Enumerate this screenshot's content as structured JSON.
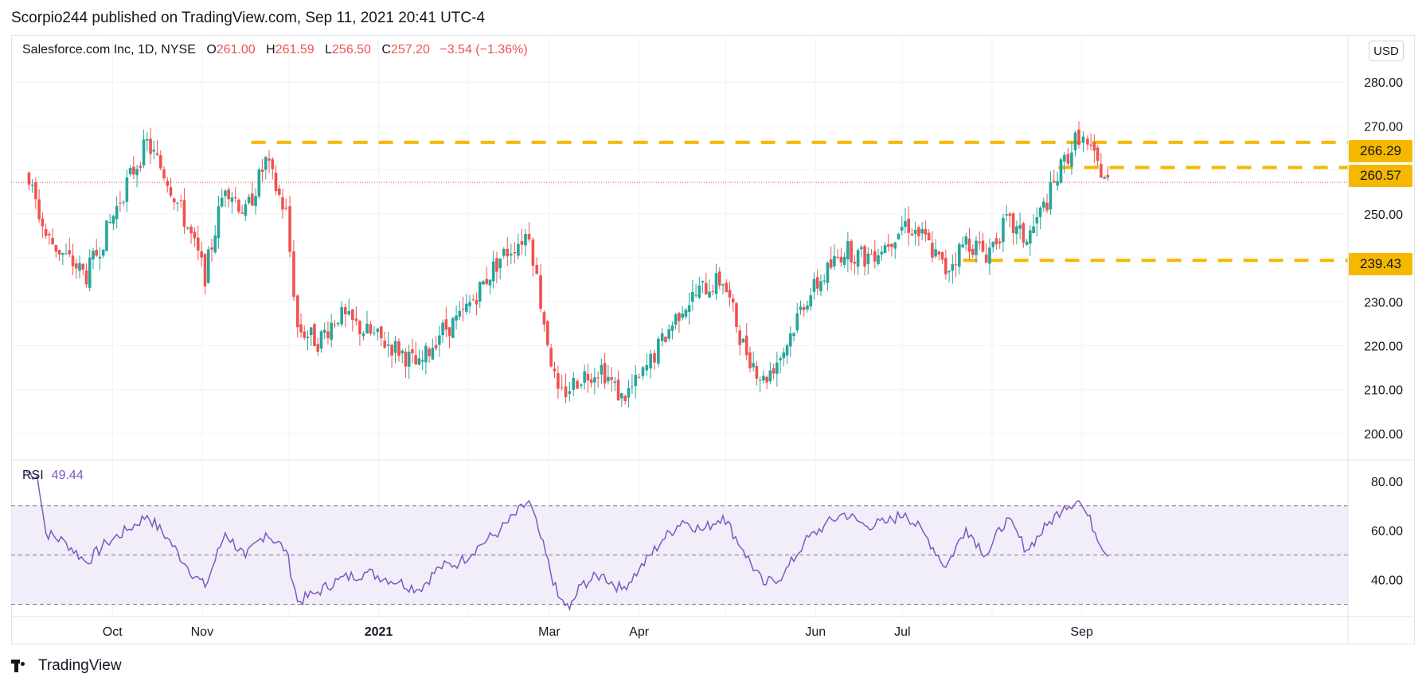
{
  "header": {
    "published": "Scorpio244 published on TradingView.com, Sep 11, 2021 20:41 UTC-4"
  },
  "legend": {
    "symbol": "Salesforce.com Inc, 1D, NYSE",
    "open_label": "O",
    "open": "261.00",
    "high_label": "H",
    "high": "261.59",
    "low_label": "L",
    "low": "256.50",
    "close_label": "C",
    "close": "257.20",
    "change": "−3.54 (−1.36%)"
  },
  "currency_button": "USD",
  "rsi_legend": {
    "label": "RSI",
    "value": "49.44"
  },
  "footer": {
    "brand": "TradingView"
  },
  "colors": {
    "up": "#26a69a",
    "down": "#ef5350",
    "level": "#f5b800",
    "rsi": "#7e57c2",
    "rsi_band": "#ede7f6"
  },
  "icons": [
    "tradingview-logo-icon"
  ],
  "chart_data": [
    {
      "type": "candlestick",
      "title": "Salesforce.com Inc, 1D, NYSE",
      "x_tick_labels": [
        "Oct",
        "Nov",
        "2021",
        "Mar",
        "Apr",
        "Jun",
        "Jul",
        "Sep"
      ],
      "y_tick_labels": [
        "200.00",
        "210.00",
        "220.00",
        "230.00",
        "240.00",
        "250.00",
        "260.00",
        "270.00",
        "280.00"
      ],
      "ylim": [
        194,
        290
      ],
      "last_close": 257.2,
      "levels": [
        {
          "value": 266.29,
          "label": "266.29",
          "style": "dashed"
        },
        {
          "value": 260.57,
          "label": "260.57",
          "style": "dashed"
        },
        {
          "value": 239.43,
          "label": "239.43",
          "style": "dashed"
        }
      ],
      "close_path": [
        [
          "2020-09-01",
          260.0
        ],
        [
          "2020-09-08",
          245.0
        ],
        [
          "2020-09-15",
          240.0
        ],
        [
          "2020-09-22",
          236.0
        ],
        [
          "2020-09-29",
          246.0
        ],
        [
          "2020-10-06",
          257.0
        ],
        [
          "2020-10-13",
          266.0
        ],
        [
          "2020-10-20",
          258.0
        ],
        [
          "2020-10-27",
          247.0
        ],
        [
          "2020-11-02",
          236.0
        ],
        [
          "2020-11-09",
          257.0
        ],
        [
          "2020-11-16",
          250.0
        ],
        [
          "2020-11-23",
          262.0
        ],
        [
          "2020-11-30",
          250.0
        ],
        [
          "2020-12-04",
          224.0
        ],
        [
          "2020-12-11",
          221.0
        ],
        [
          "2020-12-18",
          227.0
        ],
        [
          "2020-12-28",
          223.0
        ],
        [
          "2021-01-08",
          219.0
        ],
        [
          "2021-01-15",
          215.0
        ],
        [
          "2021-01-22",
          223.0
        ],
        [
          "2021-01-29",
          226.0
        ],
        [
          "2021-02-05",
          233.0
        ],
        [
          "2021-02-12",
          240.0
        ],
        [
          "2021-02-22",
          246.0
        ],
        [
          "2021-02-26",
          230.0
        ],
        [
          "2021-03-04",
          208.0
        ],
        [
          "2021-03-12",
          213.0
        ],
        [
          "2021-03-19",
          215.0
        ],
        [
          "2021-03-26",
          208.0
        ],
        [
          "2021-04-01",
          212.0
        ],
        [
          "2021-04-09",
          221.0
        ],
        [
          "2021-04-16",
          229.0
        ],
        [
          "2021-04-23",
          233.0
        ],
        [
          "2021-04-30",
          235.0
        ],
        [
          "2021-05-07",
          220.0
        ],
        [
          "2021-05-14",
          212.0
        ],
        [
          "2021-05-21",
          219.0
        ],
        [
          "2021-05-28",
          230.0
        ],
        [
          "2021-06-04",
          236.0
        ],
        [
          "2021-06-11",
          242.0
        ],
        [
          "2021-06-18",
          240.0
        ],
        [
          "2021-06-25",
          243.0
        ],
        [
          "2021-07-02",
          248.0
        ],
        [
          "2021-07-09",
          244.0
        ],
        [
          "2021-07-16",
          237.0
        ],
        [
          "2021-07-23",
          244.0
        ],
        [
          "2021-07-30",
          241.0
        ],
        [
          "2021-08-06",
          248.0
        ],
        [
          "2021-08-13",
          244.0
        ],
        [
          "2021-08-20",
          253.0
        ],
        [
          "2021-08-26",
          262.0
        ],
        [
          "2021-08-31",
          268.0
        ],
        [
          "2021-09-03",
          265.0
        ],
        [
          "2021-09-10",
          257.2
        ]
      ]
    },
    {
      "type": "line",
      "title": "RSI",
      "y_tick_labels": [
        "40.00",
        "60.00",
        "80.00"
      ],
      "ylim": [
        25,
        88
      ],
      "bands": {
        "upper": 70,
        "middle": 50,
        "lower": 30
      },
      "last_value": 49.44,
      "series": [
        {
          "values": [
            [
              "2020-09-01",
              84
            ],
            [
              "2020-09-05",
              82
            ],
            [
              "2020-09-08",
              59
            ],
            [
              "2020-09-15",
              55
            ],
            [
              "2020-09-22",
              47
            ],
            [
              "2020-09-29",
              55
            ],
            [
              "2020-10-06",
              60
            ],
            [
              "2020-10-13",
              66
            ],
            [
              "2020-10-20",
              57
            ],
            [
              "2020-10-27",
              45
            ],
            [
              "2020-11-02",
              37
            ],
            [
              "2020-11-09",
              59
            ],
            [
              "2020-11-16",
              49
            ],
            [
              "2020-11-23",
              59
            ],
            [
              "2020-11-30",
              52
            ],
            [
              "2020-12-04",
              31
            ],
            [
              "2020-12-11",
              35
            ],
            [
              "2020-12-18",
              40
            ],
            [
              "2020-12-28",
              43
            ],
            [
              "2021-01-08",
              39
            ],
            [
              "2021-01-15",
              36
            ],
            [
              "2021-01-22",
              45
            ],
            [
              "2021-01-29",
              47
            ],
            [
              "2021-02-05",
              54
            ],
            [
              "2021-02-12",
              60
            ],
            [
              "2021-02-22",
              72
            ],
            [
              "2021-02-26",
              57
            ],
            [
              "2021-03-04",
              33
            ],
            [
              "2021-03-08",
              28
            ],
            [
              "2021-03-12",
              38
            ],
            [
              "2021-03-19",
              42
            ],
            [
              "2021-03-26",
              36
            ],
            [
              "2021-04-01",
              44
            ],
            [
              "2021-04-09",
              56
            ],
            [
              "2021-04-16",
              64
            ],
            [
              "2021-04-23",
              60
            ],
            [
              "2021-04-30",
              66
            ],
            [
              "2021-05-07",
              52
            ],
            [
              "2021-05-14",
              38
            ],
            [
              "2021-05-21",
              42
            ],
            [
              "2021-05-28",
              55
            ],
            [
              "2021-06-04",
              62
            ],
            [
              "2021-06-11",
              67
            ],
            [
              "2021-06-18",
              62
            ],
            [
              "2021-06-25",
              63
            ],
            [
              "2021-07-02",
              67
            ],
            [
              "2021-07-09",
              58
            ],
            [
              "2021-07-16",
              45
            ],
            [
              "2021-07-23",
              61
            ],
            [
              "2021-07-30",
              50
            ],
            [
              "2021-08-06",
              65
            ],
            [
              "2021-08-13",
              52
            ],
            [
              "2021-08-20",
              62
            ],
            [
              "2021-08-26",
              70
            ],
            [
              "2021-08-31",
              72
            ],
            [
              "2021-09-03",
              66
            ],
            [
              "2021-09-10",
              49.44
            ]
          ]
        }
      ]
    }
  ]
}
